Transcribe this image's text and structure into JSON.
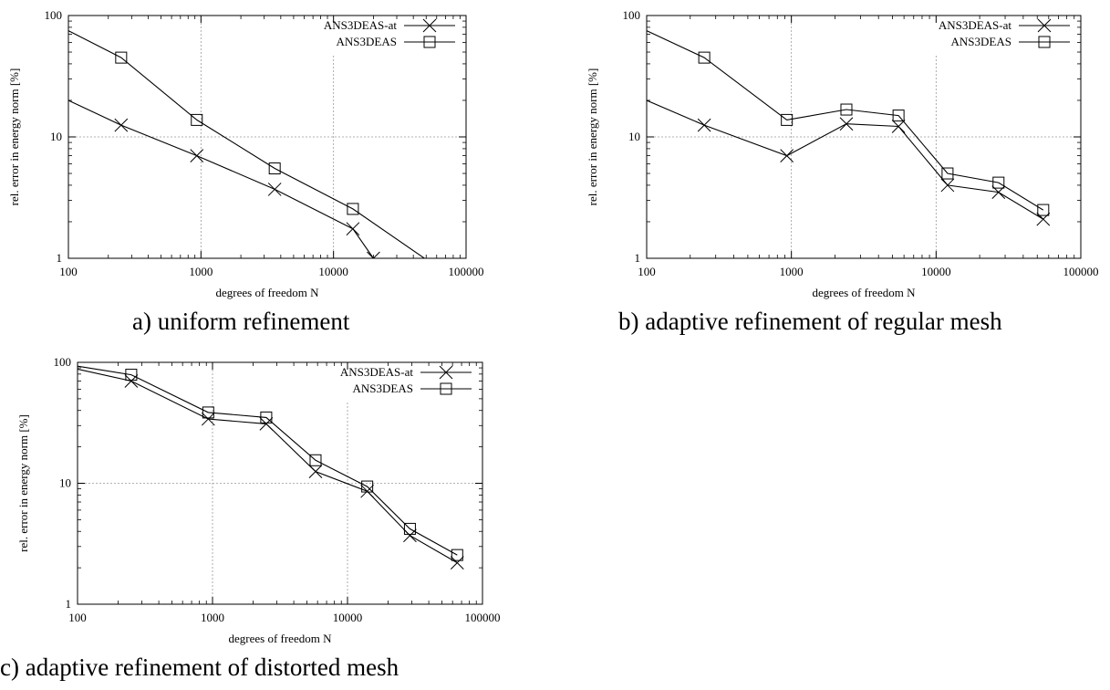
{
  "chart_data": [
    {
      "type": "line",
      "caption": "a) uniform refinement",
      "xlabel": "degrees of freedom N",
      "ylabel": "rel. error in energy norm [%]",
      "xscale": "log",
      "yscale": "log",
      "xlim": [
        100,
        100000
      ],
      "ylim": [
        1,
        100
      ],
      "xticks": [
        "100",
        "1000",
        "10000",
        "100000"
      ],
      "yticks": [
        "1",
        "10",
        "100"
      ],
      "grid": true,
      "legend_position": "top-right",
      "series": [
        {
          "name": "ANS3DEAS-at",
          "marker": "x",
          "x": [
            100,
            250,
            930,
            3600,
            14000,
            20000
          ],
          "y": [
            20,
            12.5,
            7,
            3.7,
            1.75,
            1.0
          ]
        },
        {
          "name": "ANS3DEAS",
          "marker": "square",
          "x": [
            100,
            250,
            930,
            3600,
            14000,
            52000
          ],
          "y": [
            75,
            45,
            13.8,
            5.5,
            2.55,
            0.95
          ]
        }
      ]
    },
    {
      "type": "line",
      "caption": "b) adaptive refinement of regular mesh",
      "xlabel": "degrees of freedom N",
      "ylabel": "rel. error in energy norm [%]",
      "xscale": "log",
      "yscale": "log",
      "xlim": [
        100,
        100000
      ],
      "ylim": [
        1,
        100
      ],
      "xticks": [
        "100",
        "1000",
        "10000",
        "100000"
      ],
      "yticks": [
        "1",
        "10",
        "100"
      ],
      "grid": true,
      "legend_position": "top-right",
      "series": [
        {
          "name": "ANS3DEAS-at",
          "marker": "x",
          "x": [
            100,
            250,
            930,
            2400,
            5500,
            12000,
            27000,
            55000
          ],
          "y": [
            20,
            12.5,
            7,
            12.8,
            12.2,
            4.0,
            3.5,
            2.1
          ]
        },
        {
          "name": "ANS3DEAS",
          "marker": "square",
          "x": [
            100,
            250,
            930,
            2400,
            5500,
            12000,
            27000,
            55000
          ],
          "y": [
            75,
            45,
            13.8,
            16.8,
            15,
            5.0,
            4.2,
            2.5
          ]
        }
      ]
    },
    {
      "type": "line",
      "caption": "c) adaptive refinement of distorted mesh",
      "xlabel": "degrees of freedom N",
      "ylabel": "rel. error in energy norm [%]",
      "xscale": "log",
      "yscale": "log",
      "xlim": [
        100,
        100000
      ],
      "ylim": [
        1,
        100
      ],
      "xticks": [
        "100",
        "1000",
        "10000",
        "100000"
      ],
      "yticks": [
        "1",
        "10",
        "100"
      ],
      "grid": true,
      "legend_position": "top-right",
      "series": [
        {
          "name": "ANS3DEAS-at",
          "marker": "x",
          "x": [
            100,
            250,
            930,
            2500,
            5800,
            14000,
            29000,
            65000
          ],
          "y": [
            88,
            70,
            34,
            31,
            12.5,
            8.6,
            3.7,
            2.2
          ]
        },
        {
          "name": "ANS3DEAS",
          "marker": "square",
          "x": [
            100,
            250,
            930,
            2500,
            5800,
            14000,
            29000,
            65000
          ],
          "y": [
            93,
            79,
            38.5,
            35,
            15.5,
            9.4,
            4.2,
            2.55
          ]
        }
      ]
    }
  ]
}
